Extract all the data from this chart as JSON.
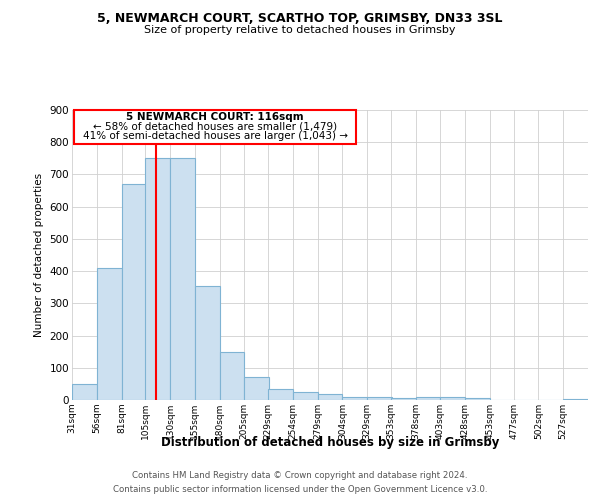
{
  "title1": "5, NEWMARCH COURT, SCARTHO TOP, GRIMSBY, DN33 3SL",
  "title2": "Size of property relative to detached houses in Grimsby",
  "xlabel": "Distribution of detached houses by size in Grimsby",
  "ylabel": "Number of detached properties",
  "footnote1": "Contains HM Land Registry data © Crown copyright and database right 2024.",
  "footnote2": "Contains public sector information licensed under the Open Government Licence v3.0.",
  "annotation_line1": "5 NEWMARCH COURT: 116sqm",
  "annotation_line2": "← 58% of detached houses are smaller (1,479)",
  "annotation_line3": "41% of semi-detached houses are larger (1,043) →",
  "bar_color": "#cce0f0",
  "bar_edge_color": "#7fb3d3",
  "red_line_x": 116,
  "bin_width": 25,
  "bin_starts": [
    31,
    56,
    81,
    105,
    130,
    155,
    180,
    205,
    229,
    254,
    279,
    304,
    329,
    353,
    378,
    403,
    428,
    453,
    477,
    502,
    527
  ],
  "bar_heights": [
    50,
    410,
    670,
    750,
    750,
    355,
    148,
    70,
    35,
    25,
    18,
    10,
    8,
    5,
    8,
    8,
    5,
    0,
    0,
    0,
    3
  ],
  "tick_labels": [
    "31sqm",
    "56sqm",
    "81sqm",
    "105sqm",
    "130sqm",
    "155sqm",
    "180sqm",
    "205sqm",
    "229sqm",
    "254sqm",
    "279sqm",
    "304sqm",
    "329sqm",
    "353sqm",
    "378sqm",
    "403sqm",
    "428sqm",
    "453sqm",
    "477sqm",
    "502sqm",
    "527sqm"
  ],
  "ylim": [
    0,
    900
  ],
  "yticks": [
    0,
    100,
    200,
    300,
    400,
    500,
    600,
    700,
    800,
    900
  ],
  "background_color": "#ffffff",
  "grid_color": "#d0d0d0"
}
